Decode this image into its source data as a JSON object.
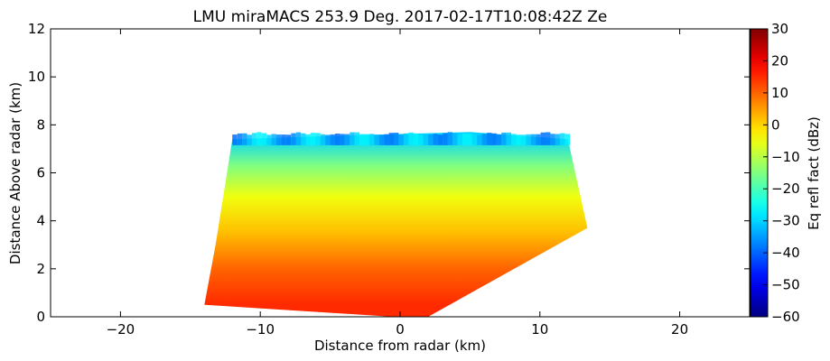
{
  "chart_data": {
    "type": "heatmap",
    "title": "LMU miraMACS 253.9 Deg. 2017-02-17T10:08:42Z  Ze",
    "xlabel": "Distance from radar (km)",
    "ylabel": "Distance Above radar  (km)",
    "xlim": [
      -25,
      25
    ],
    "ylim": [
      0,
      12
    ],
    "x_ticks": [
      -20,
      -10,
      0,
      10,
      20
    ],
    "x_tick_labels": [
      "−20",
      "−10",
      "0",
      "10",
      "20"
    ],
    "y_ticks": [
      0,
      2,
      4,
      6,
      8,
      10,
      12
    ],
    "y_tick_labels": [
      "0",
      "2",
      "4",
      "6",
      "8",
      "10",
      "12"
    ],
    "scan_sector": {
      "outline_km": [
        [
          -14,
          0.5
        ],
        [
          -13.2,
          3.0
        ],
        [
          -12,
          7.4
        ],
        [
          -4,
          7.55
        ],
        [
          5,
          7.7
        ],
        [
          12,
          7.4
        ],
        [
          13.4,
          3.7
        ],
        [
          2,
          0
        ],
        [
          -0.5,
          0
        ]
      ],
      "echo_top_km": 7.5,
      "description_of_layers": [
        {
          "height_km": 0.5,
          "ze_dbz": 15
        },
        {
          "height_km": 2.0,
          "ze_dbz": 10
        },
        {
          "height_km": 3.5,
          "ze_dbz": 2
        },
        {
          "height_km": 5.0,
          "ze_dbz": -5
        },
        {
          "height_km": 6.3,
          "ze_dbz": -15
        },
        {
          "height_km": 7.5,
          "ze_dbz": -30
        }
      ]
    },
    "colorbar": {
      "label": "Eq refl fact (dBz)",
      "range": [
        -60,
        30
      ],
      "ticks": [
        30,
        20,
        10,
        0,
        -10,
        -20,
        -30,
        -40,
        -50,
        -60
      ],
      "tick_labels": [
        "30",
        "20",
        "10",
        "0",
        "−10",
        "−20",
        "−30",
        "−40",
        "−50",
        "−60"
      ],
      "colormap": "jet",
      "colors": [
        "#00007f",
        "#0000ff",
        "#007fff",
        "#00ffff",
        "#7fff7f",
        "#ffff00",
        "#ff7f00",
        "#ff0000",
        "#7f0000"
      ]
    },
    "grid": false
  }
}
